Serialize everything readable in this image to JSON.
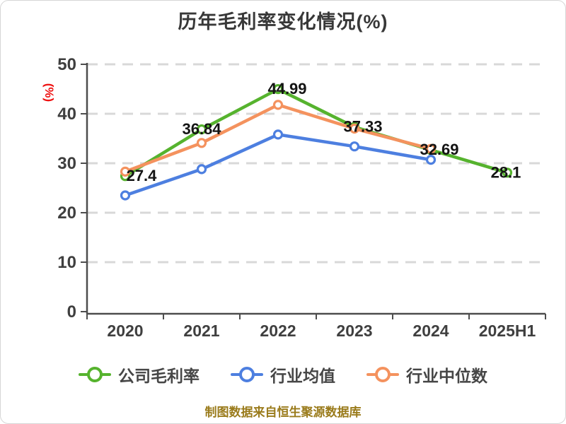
{
  "title": "历年毛利率变化情况(%)",
  "source_note": "制图数据来自恒生聚源数据库",
  "chart_data": {
    "type": "line",
    "title": "历年毛利率变化情况(%)",
    "categories": [
      "2020",
      "2021",
      "2022",
      "2023",
      "2024",
      "2025H1"
    ],
    "series": [
      {
        "name": "公司毛利率",
        "color": "#56b32e",
        "values": [
          27.4,
          36.84,
          44.99,
          37.33,
          32.69,
          28.1
        ],
        "point_labels": [
          "27.4",
          "36.84",
          "44.99",
          "37.33",
          "32.69",
          "28.1"
        ]
      },
      {
        "name": "行业均值",
        "color": "#4d7fe0",
        "values": [
          23.5,
          28.8,
          35.8,
          33.4,
          30.7,
          null
        ],
        "point_labels": null
      },
      {
        "name": "行业中位数",
        "color": "#f4925e",
        "values": [
          28.3,
          34.1,
          41.8,
          37.0,
          32.9,
          null
        ],
        "point_labels": null
      }
    ],
    "xlabel": "",
    "ylabel": "(%)",
    "ylim": [
      0,
      50
    ],
    "yticks": [
      0,
      10,
      20,
      30,
      40,
      50
    ],
    "grid": true,
    "grid_style": "dashed",
    "legend_position": "bottom",
    "legend": [
      "公司毛利率",
      "行业均值",
      "行业中位数"
    ],
    "marker": "circle-white-fill"
  },
  "colors": {
    "background": "#ffffff",
    "title": "#383838",
    "axis": "#4d4d4d",
    "tick_label": "#3f3f3f",
    "gridline": "#d8d8d8",
    "ylabel": "#ee1111",
    "value_label": "#141414",
    "legend_text": "#464646",
    "source_note": "#9a7b1b",
    "marker_fill": "#ffffff",
    "series_green": "#56b32e",
    "series_blue": "#4d7fe0",
    "series_orange": "#f4925e"
  }
}
